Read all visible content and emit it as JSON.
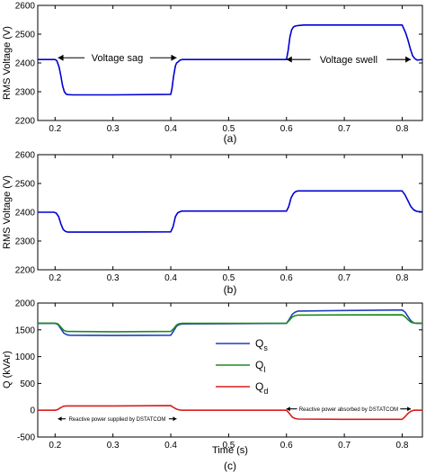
{
  "chart_data": [
    {
      "id": "a",
      "type": "line",
      "caption": "(a)",
      "ylabel": "RMS Voltage (V)",
      "xlabel": "",
      "xlim": [
        0.17,
        0.835
      ],
      "ylim": [
        2200,
        2600
      ],
      "xticks": [
        0.2,
        0.3,
        0.4,
        0.5,
        0.6,
        0.7,
        0.8
      ],
      "xtick_labels": [
        "0.2",
        "0.3",
        "0.4",
        "0.5",
        "0.6",
        "0.7",
        "0.8"
      ],
      "yticks": [
        2200,
        2300,
        2400,
        2500,
        2600
      ],
      "ytick_labels": [
        "2200",
        "2300",
        "2400",
        "2500",
        "2600"
      ],
      "series": [
        {
          "color": "#0000d0",
          "x": [
            0.17,
            0.2,
            0.203,
            0.207,
            0.21,
            0.213,
            0.216,
            0.219,
            0.222,
            0.23,
            0.3,
            0.4,
            0.402,
            0.405,
            0.408,
            0.41,
            0.413,
            0.416,
            0.42,
            0.43,
            0.5,
            0.6,
            0.603,
            0.606,
            0.609,
            0.612,
            0.615,
            0.62,
            0.63,
            0.7,
            0.8,
            0.806,
            0.81,
            0.814,
            0.818,
            0.822,
            0.826,
            0.835
          ],
          "y": [
            2412,
            2412,
            2408,
            2385,
            2355,
            2320,
            2300,
            2292,
            2290,
            2289,
            2289,
            2291,
            2310,
            2355,
            2390,
            2400,
            2404,
            2410,
            2412,
            2412,
            2412,
            2412,
            2445,
            2490,
            2515,
            2525,
            2528,
            2530,
            2532,
            2532,
            2532,
            2505,
            2480,
            2450,
            2425,
            2415,
            2410,
            2412
          ]
        }
      ],
      "annotations": [
        {
          "text": "Voltage sag",
          "x_from": 0.205,
          "x_to": 0.41,
          "y": 2418
        },
        {
          "text": "Voltage swell",
          "x_from": 0.6,
          "x_to": 0.815,
          "y": 2412
        }
      ]
    },
    {
      "id": "b",
      "type": "line",
      "caption": "(b)",
      "ylabel": "RMS Voltage (V)",
      "xlabel": "",
      "xlim": [
        0.17,
        0.835
      ],
      "ylim": [
        2200,
        2600
      ],
      "xticks": [
        0.2,
        0.3,
        0.4,
        0.5,
        0.6,
        0.7,
        0.8
      ],
      "xtick_labels": [
        "0.2",
        "0.3",
        "0.4",
        "0.5",
        "0.6",
        "0.7",
        "0.8"
      ],
      "yticks": [
        2200,
        2300,
        2400,
        2500,
        2600
      ],
      "ytick_labels": [
        "2200",
        "2300",
        "2400",
        "2500",
        "2600"
      ],
      "series": [
        {
          "color": "#0000d0",
          "x": [
            0.17,
            0.198,
            0.202,
            0.206,
            0.21,
            0.214,
            0.218,
            0.222,
            0.3,
            0.4,
            0.404,
            0.408,
            0.412,
            0.416,
            0.42,
            0.5,
            0.6,
            0.604,
            0.608,
            0.612,
            0.616,
            0.62,
            0.7,
            0.8,
            0.805,
            0.81,
            0.815,
            0.82,
            0.825,
            0.835
          ],
          "y": [
            2400,
            2400,
            2397,
            2385,
            2360,
            2340,
            2333,
            2331,
            2331,
            2332,
            2350,
            2385,
            2398,
            2402,
            2404,
            2404,
            2404,
            2420,
            2450,
            2465,
            2472,
            2474,
            2474,
            2474,
            2460,
            2440,
            2420,
            2408,
            2403,
            2401
          ]
        }
      ],
      "annotations": []
    },
    {
      "id": "c",
      "type": "line",
      "caption": "(c)",
      "ylabel": "Q (kVAr)",
      "xlabel": "Time (s)",
      "xlim": [
        0.17,
        0.835
      ],
      "ylim": [
        -500,
        2000
      ],
      "xticks": [
        0.2,
        0.3,
        0.4,
        0.5,
        0.6,
        0.7,
        0.8
      ],
      "xtick_labels": [
        "0.2",
        "0.3",
        "0.4",
        "0.5",
        "0.6",
        "0.7",
        "0.8"
      ],
      "yticks": [
        -500,
        0,
        500,
        1000,
        1500,
        2000
      ],
      "ytick_labels": [
        "-500",
        "0",
        "500",
        "1000",
        "1500",
        "2000"
      ],
      "series": [
        {
          "name": "Q_s",
          "color": "#1f3fbf",
          "x": [
            0.17,
            0.2,
            0.205,
            0.21,
            0.215,
            0.22,
            0.225,
            0.3,
            0.4,
            0.405,
            0.41,
            0.415,
            0.42,
            0.5,
            0.6,
            0.605,
            0.61,
            0.615,
            0.62,
            0.7,
            0.8,
            0.805,
            0.81,
            0.815,
            0.82,
            0.825,
            0.835
          ],
          "y": [
            1620,
            1620,
            1600,
            1520,
            1440,
            1410,
            1400,
            1395,
            1400,
            1480,
            1570,
            1600,
            1610,
            1615,
            1620,
            1700,
            1790,
            1830,
            1850,
            1860,
            1870,
            1830,
            1750,
            1670,
            1630,
            1620,
            1620
          ]
        },
        {
          "name": "Q_l",
          "color": "#1e8a1e",
          "x": [
            0.17,
            0.2,
            0.205,
            0.21,
            0.215,
            0.22,
            0.3,
            0.4,
            0.405,
            0.41,
            0.415,
            0.42,
            0.5,
            0.6,
            0.605,
            0.61,
            0.615,
            0.62,
            0.7,
            0.8,
            0.805,
            0.81,
            0.815,
            0.82,
            0.835
          ],
          "y": [
            1625,
            1625,
            1610,
            1550,
            1490,
            1470,
            1465,
            1470,
            1520,
            1590,
            1615,
            1620,
            1622,
            1625,
            1680,
            1740,
            1765,
            1775,
            1778,
            1780,
            1745,
            1690,
            1645,
            1628,
            1625
          ]
        },
        {
          "name": "Q_d",
          "color": "#d81e1e",
          "x": [
            0.17,
            0.2,
            0.205,
            0.21,
            0.215,
            0.22,
            0.23,
            0.3,
            0.4,
            0.405,
            0.41,
            0.415,
            0.42,
            0.5,
            0.6,
            0.605,
            0.61,
            0.615,
            0.62,
            0.7,
            0.8,
            0.805,
            0.81,
            0.815,
            0.82,
            0.835
          ],
          "y": [
            0,
            0,
            15,
            50,
            75,
            80,
            80,
            80,
            85,
            50,
            20,
            5,
            0,
            0,
            0,
            -60,
            -130,
            -155,
            -165,
            -170,
            -170,
            -120,
            -60,
            -20,
            0,
            0
          ]
        }
      ],
      "legend": {
        "placement": "center-right",
        "entries": [
          {
            "base": "Q",
            "sub": "s",
            "color": "#1f3fbf"
          },
          {
            "base": "Q",
            "sub": "l",
            "color": "#1e8a1e"
          },
          {
            "base": "Q",
            "sub": "d",
            "color": "#d81e1e"
          }
        ]
      },
      "annotations": [
        {
          "text": "Reactive power supplied by DSTATCOM",
          "x_from": 0.205,
          "x_to": 0.41,
          "y": -160
        },
        {
          "text": "Reactive power absorbed by DSTATCOM",
          "x_from": 0.6,
          "x_to": 0.815,
          "y": 25
        }
      ]
    }
  ]
}
